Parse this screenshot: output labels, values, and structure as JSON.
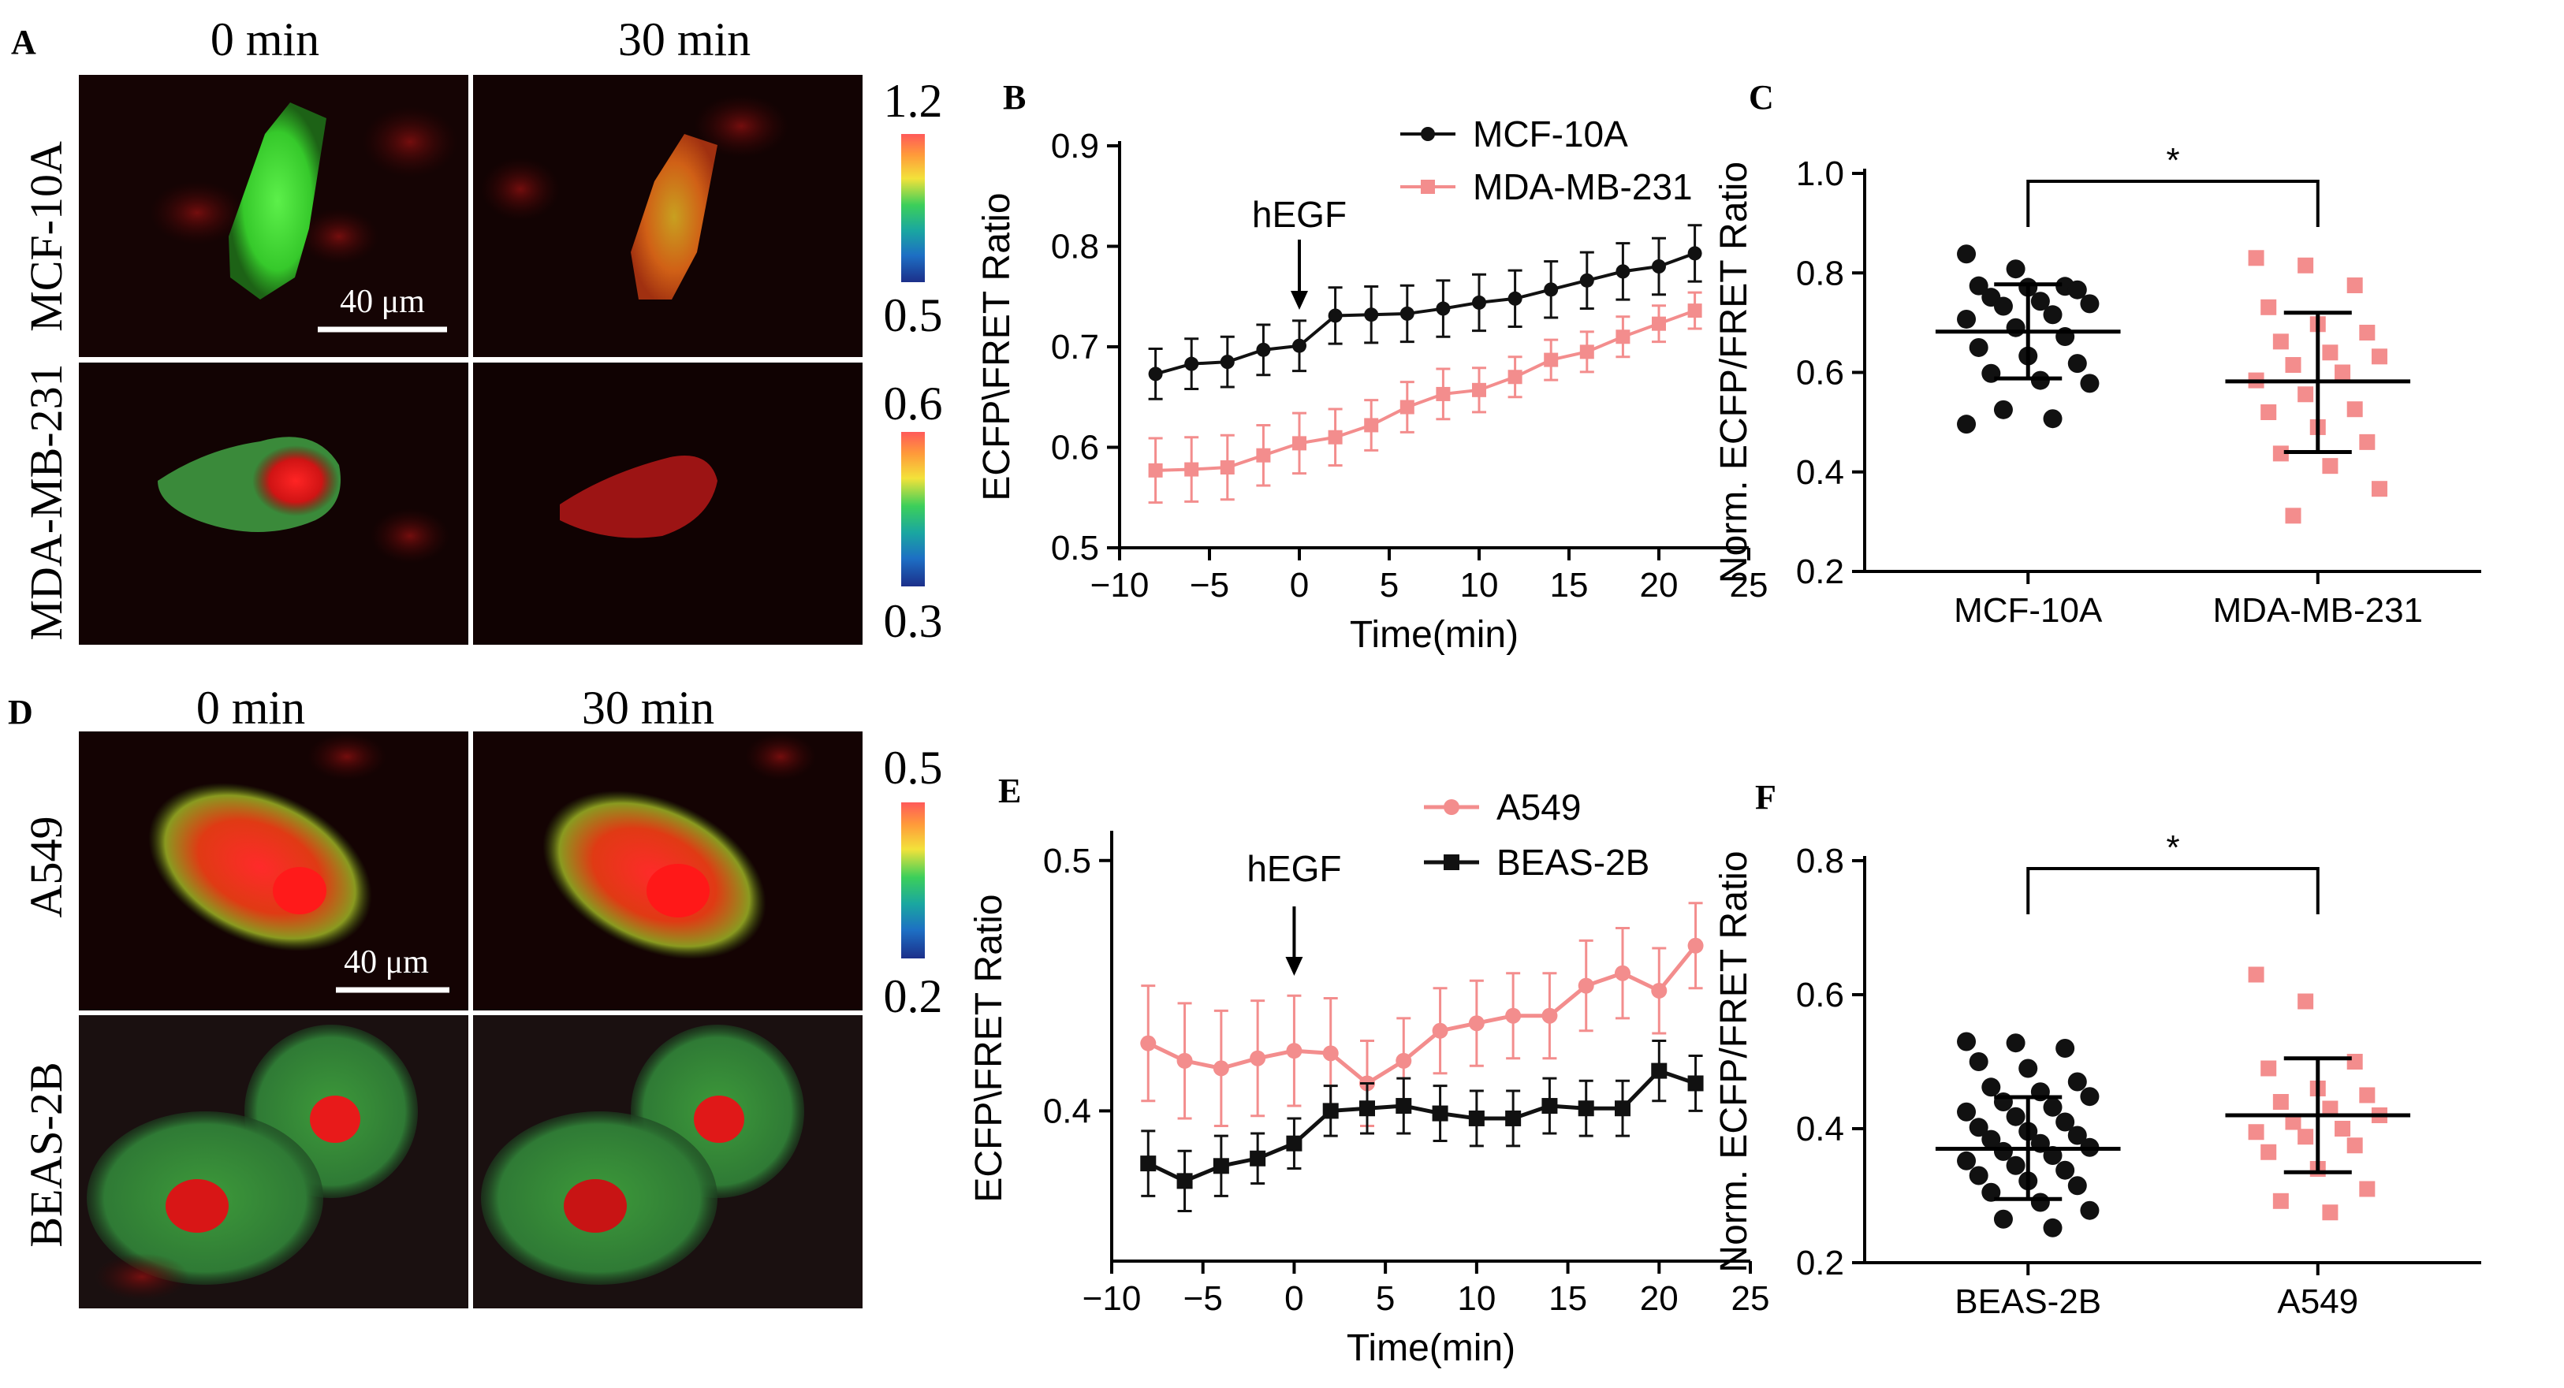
{
  "panel_letters": {
    "a": "A",
    "b": "B",
    "c": "C",
    "d": "D",
    "e": "E",
    "f": "F"
  },
  "images_top": {
    "col_labels": [
      "0 min",
      "30 min"
    ],
    "row_labels": [
      "MCF-10A",
      "MDA-MB-231"
    ],
    "scale_bar": "40 μm",
    "colorbar_row1": {
      "max": "1.2",
      "min": "0.5"
    },
    "colorbar_row2": {
      "max": "0.6",
      "min": "0.3"
    }
  },
  "images_bottom": {
    "col_labels": [
      "0 min",
      "30 min"
    ],
    "row_labels": [
      "A549",
      "BEAS-2B"
    ],
    "scale_bar": "40 μm",
    "colorbar": {
      "max": "0.5",
      "min": "0.2"
    }
  },
  "colors": {
    "black_series": "#111111",
    "pink_series": "#f38d8d",
    "pink_dark": "#ee7d7d"
  },
  "chart_data": [
    {
      "id": "B",
      "type": "line",
      "xlabel": "Time(min)",
      "ylabel": "ECFP\\FRET Ratio",
      "xlim": [
        -10,
        25
      ],
      "ylim": [
        0.5,
        0.9
      ],
      "xticks": [
        "−10",
        "−5",
        "0",
        "5",
        "10",
        "15",
        "20",
        "25"
      ],
      "yticks": [
        "0.5",
        "0.6",
        "0.7",
        "0.8",
        "0.9"
      ],
      "annotation": "hEGF",
      "annotation_x": 0,
      "x": [
        -8,
        -6,
        -4,
        -2,
        0,
        2,
        4,
        6,
        8,
        10,
        12,
        14,
        16,
        18,
        20,
        22
      ],
      "series": [
        {
          "name": "MCF-10A",
          "marker": "circle",
          "values": [
            0.673,
            0.683,
            0.685,
            0.697,
            0.701,
            0.731,
            0.732,
            0.733,
            0.738,
            0.744,
            0.748,
            0.757,
            0.766,
            0.775,
            0.78,
            0.793
          ],
          "err": [
            0.025,
            0.025,
            0.025,
            0.025,
            0.025,
            0.028,
            0.028,
            0.028,
            0.028,
            0.028,
            0.028,
            0.028,
            0.028,
            0.028,
            0.028,
            0.028
          ]
        },
        {
          "name": "MDA-MB-231",
          "marker": "square",
          "values": [
            0.577,
            0.578,
            0.58,
            0.592,
            0.604,
            0.61,
            0.622,
            0.64,
            0.653,
            0.657,
            0.67,
            0.687,
            0.695,
            0.71,
            0.723,
            0.736
          ],
          "err": [
            0.032,
            0.032,
            0.032,
            0.03,
            0.03,
            0.028,
            0.025,
            0.025,
            0.025,
            0.022,
            0.02,
            0.02,
            0.02,
            0.02,
            0.018,
            0.018
          ]
        }
      ]
    },
    {
      "id": "C",
      "type": "scatter",
      "ylabel": "Norm. ECFP/FRET Ratio",
      "categories": [
        "MCF-10A",
        "MDA-MB-231"
      ],
      "ylim": [
        0.2,
        1.0
      ],
      "yticks": [
        "0.2",
        "0.4",
        "0.6",
        "0.8",
        "1.0"
      ],
      "significance": "*",
      "groups": [
        {
          "name": "MCF-10A",
          "marker": "circle",
          "mean": 0.682,
          "sd_low": 0.588,
          "sd_high": 0.777,
          "points": [
            0.838,
            0.808,
            0.773,
            0.774,
            0.771,
            0.766,
            0.751,
            0.743,
            0.738,
            0.733,
            0.716,
            0.707,
            0.69,
            0.672,
            0.65,
            0.633,
            0.618,
            0.598,
            0.584,
            0.578,
            0.525,
            0.507,
            0.496
          ]
        },
        {
          "name": "MDA-MB-231",
          "marker": "square",
          "mean": 0.582,
          "sd_low": 0.44,
          "sd_high": 0.72,
          "points": [
            0.83,
            0.815,
            0.775,
            0.731,
            0.697,
            0.68,
            0.662,
            0.64,
            0.632,
            0.615,
            0.6,
            0.584,
            0.556,
            0.526,
            0.52,
            0.49,
            0.46,
            0.437,
            0.412,
            0.366,
            0.312
          ]
        }
      ]
    },
    {
      "id": "E",
      "type": "line",
      "xlabel": "Time(min)",
      "ylabel": "ECFP\\FRET Ratio",
      "xlim": [
        -10,
        25
      ],
      "ylim": [
        0.34,
        0.51
      ],
      "xticks": [
        "−10",
        "−5",
        "0",
        "5",
        "10",
        "15",
        "20",
        "25"
      ],
      "yticks": [
        "0.4",
        "0.5"
      ],
      "yticks_values": [
        0.4,
        0.5
      ],
      "annotation": "hEGF",
      "annotation_x": 0,
      "x": [
        -8,
        -6,
        -4,
        -2,
        0,
        2,
        4,
        6,
        8,
        10,
        12,
        14,
        16,
        18,
        20,
        22
      ],
      "series": [
        {
          "name": "A549",
          "marker": "circle",
          "values": [
            0.427,
            0.42,
            0.417,
            0.421,
            0.424,
            0.423,
            0.411,
            0.42,
            0.432,
            0.435,
            0.438,
            0.438,
            0.45,
            0.455,
            0.448,
            0.466
          ],
          "err": [
            0.023,
            0.023,
            0.023,
            0.023,
            0.022,
            0.022,
            0.017,
            0.017,
            0.017,
            0.017,
            0.017,
            0.017,
            0.018,
            0.018,
            0.017,
            0.017
          ]
        },
        {
          "name": "BEAS-2B",
          "marker": "square",
          "values": [
            0.379,
            0.372,
            0.378,
            0.381,
            0.387,
            0.4,
            0.401,
            0.402,
            0.399,
            0.397,
            0.397,
            0.402,
            0.401,
            0.401,
            0.416,
            0.411
          ],
          "err": [
            0.013,
            0.012,
            0.012,
            0.01,
            0.01,
            0.01,
            0.01,
            0.011,
            0.011,
            0.011,
            0.011,
            0.011,
            0.011,
            0.011,
            0.012,
            0.011
          ]
        }
      ]
    },
    {
      "id": "F",
      "type": "scatter",
      "ylabel": "Norm. ECFP/FRET Ratio",
      "categories": [
        "BEAS-2B",
        "A549"
      ],
      "ylim": [
        0.2,
        0.8
      ],
      "yticks": [
        "0.2",
        "0.4",
        "0.6",
        "0.8"
      ],
      "significance": "*",
      "groups": [
        {
          "name": "BEAS-2B",
          "marker": "circle",
          "mean": 0.37,
          "sd_low": 0.295,
          "sd_high": 0.447,
          "points": [
            0.53,
            0.528,
            0.52,
            0.5,
            0.49,
            0.47,
            0.462,
            0.455,
            0.448,
            0.44,
            0.432,
            0.425,
            0.418,
            0.41,
            0.402,
            0.396,
            0.39,
            0.384,
            0.378,
            0.372,
            0.366,
            0.36,
            0.352,
            0.345,
            0.338,
            0.33,
            0.322,
            0.315,
            0.305,
            0.29,
            0.278,
            0.265,
            0.252
          ]
        },
        {
          "name": "A549",
          "marker": "square",
          "mean": 0.42,
          "sd_low": 0.335,
          "sd_high": 0.505,
          "points": [
            0.63,
            0.59,
            0.5,
            0.49,
            0.46,
            0.45,
            0.44,
            0.43,
            0.42,
            0.41,
            0.4,
            0.395,
            0.388,
            0.375,
            0.365,
            0.34,
            0.31,
            0.292,
            0.275
          ]
        }
      ]
    }
  ]
}
